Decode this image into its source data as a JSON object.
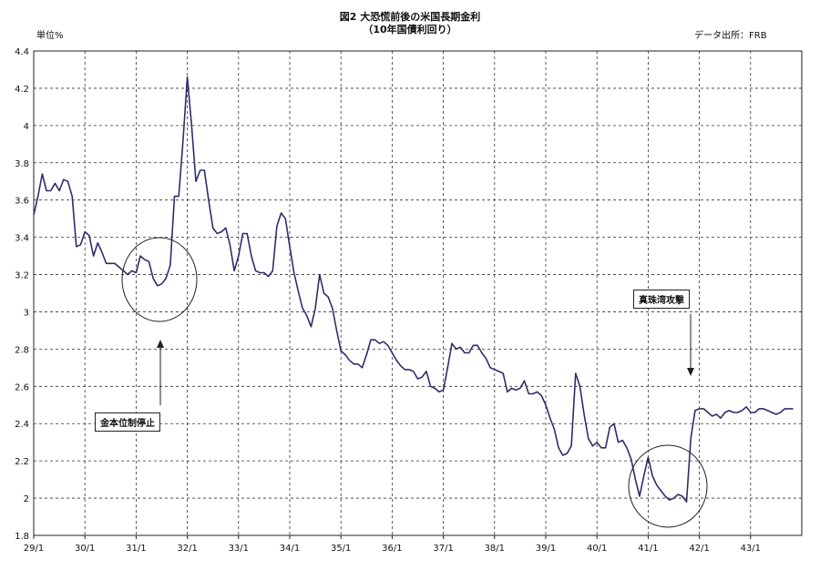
{
  "header": {
    "title": "図2 大恐慌前後の米国長期金利",
    "subtitle": "（10年国債利回り）",
    "unit": "単位%",
    "source": "データ出所：FRB"
  },
  "annotations": {
    "gold_suspension": "金本位制停止",
    "pearl_harbor": "真珠湾攻撃"
  },
  "chart_data": {
    "type": "line",
    "title": "図2 大恐慌前後の米国長期金利",
    "subtitle": "（10年国債利回り）",
    "ylabel": "単位%",
    "ylim": [
      1.8,
      4.4
    ],
    "yticks": [
      1.8,
      2,
      2.2,
      2.4,
      2.6,
      2.8,
      3,
      3.2,
      3.4,
      3.6,
      3.8,
      4,
      4.2,
      4.4
    ],
    "ytick_labels": [
      "1.8",
      "2",
      "2.2",
      "2.4",
      "2.6",
      "2.8",
      "3",
      "3.2",
      "3.4",
      "3.6",
      "3.8",
      "4",
      "4.2",
      "4.4"
    ],
    "xlim": [
      0,
      180
    ],
    "xtick_labels": [
      "29/1",
      "30/1",
      "31/1",
      "32/1",
      "33/1",
      "34/1",
      "35/1",
      "36/1",
      "37/1",
      "38/1",
      "39/1",
      "40/1",
      "41/1",
      "42/1",
      "43/1"
    ],
    "grid": true,
    "line_color": "#2e2e6b",
    "series": [
      {
        "values": [
          3.52,
          3.62,
          3.74,
          3.65,
          3.65,
          3.69,
          3.65,
          3.71,
          3.7,
          3.62,
          3.35,
          3.36,
          3.43,
          3.41,
          3.3,
          3.37,
          3.32,
          3.26,
          3.26,
          3.26,
          3.24,
          3.22,
          3.2,
          3.22,
          3.21,
          3.3,
          3.28,
          3.27,
          3.18,
          3.14,
          3.15,
          3.18,
          3.25,
          3.62,
          3.62,
          3.92,
          4.26,
          4.0,
          3.7,
          3.76,
          3.76,
          3.6,
          3.45,
          3.42,
          3.43,
          3.45,
          3.36,
          3.22,
          3.3,
          3.42,
          3.42,
          3.3,
          3.22,
          3.21,
          3.21,
          3.19,
          3.22,
          3.46,
          3.53,
          3.5,
          3.35,
          3.21,
          3.11,
          3.02,
          2.98,
          2.92,
          3.02,
          3.2,
          3.1,
          3.08,
          3.02,
          2.9,
          2.79,
          2.77,
          2.74,
          2.72,
          2.72,
          2.7,
          2.77,
          2.85,
          2.85,
          2.83,
          2.84,
          2.82,
          2.78,
          2.74,
          2.71,
          2.69,
          2.69,
          2.68,
          2.64,
          2.65,
          2.68,
          2.6,
          2.59,
          2.57,
          2.58,
          2.7,
          2.83,
          2.8,
          2.81,
          2.78,
          2.78,
          2.82,
          2.82,
          2.78,
          2.75,
          2.7,
          2.69,
          2.68,
          2.67,
          2.57,
          2.59,
          2.58,
          2.59,
          2.63,
          2.56,
          2.56,
          2.57,
          2.55,
          2.5,
          2.43,
          2.37,
          2.27,
          2.23,
          2.24,
          2.28,
          2.67,
          2.6,
          2.45,
          2.32,
          2.28,
          2.3,
          2.27,
          2.27,
          2.38,
          2.4,
          2.3,
          2.31,
          2.27,
          2.21,
          2.1,
          2.01,
          2.12,
          2.22,
          2.12,
          2.07,
          2.04,
          2.01,
          1.99,
          2.0,
          2.02,
          2.01,
          1.98,
          2.32,
          2.47,
          2.48,
          2.48,
          2.46,
          2.44,
          2.45,
          2.43,
          2.46,
          2.47,
          2.46,
          2.46,
          2.47,
          2.49,
          2.46,
          2.46,
          2.48,
          2.48,
          2.47,
          2.46,
          2.45,
          2.46,
          2.48,
          2.48,
          2.48
        ]
      }
    ]
  }
}
